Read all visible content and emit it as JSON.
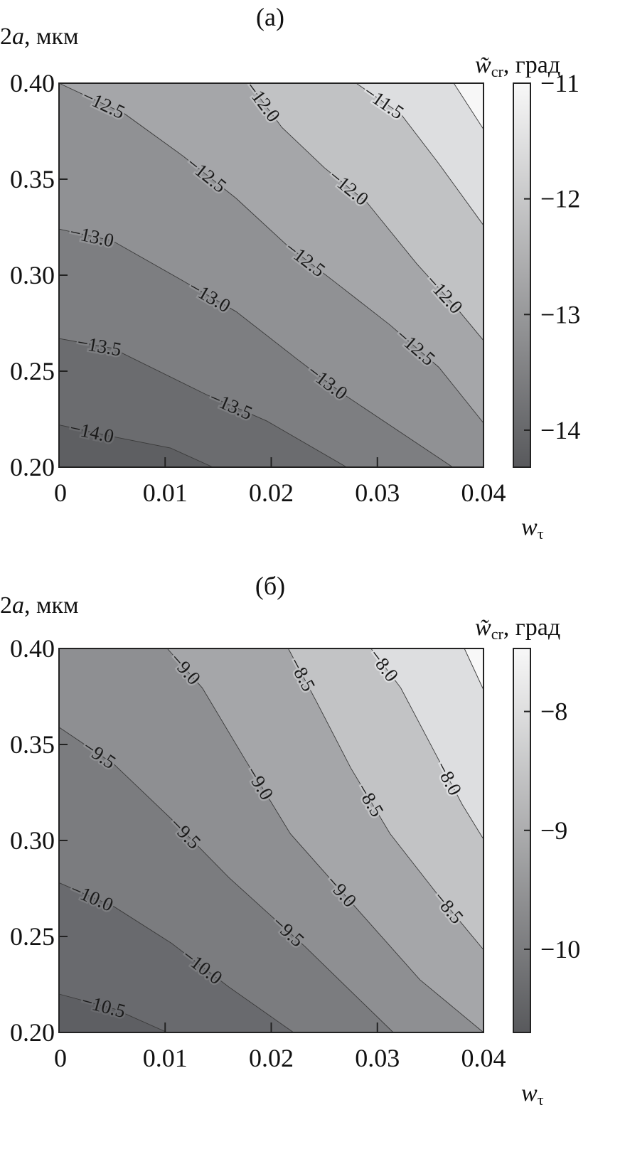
{
  "chart_data": [
    {
      "type": "heatmap",
      "subtype": "filled-contour",
      "title": "(a)",
      "xlabel": "w",
      "xlabel_sub": "τ",
      "ylabel": "2a, мкм",
      "ylabel_main": "2",
      "ylabel_italic": "a",
      "ylabel_unit": ", мкм",
      "colorbar_label_main": "w̃",
      "colorbar_label_sub": "cr",
      "colorbar_label_unit": ", град",
      "xlim": [
        0,
        0.04
      ],
      "ylim": [
        0.2,
        0.4
      ],
      "x_ticks": [
        "0",
        "0.01",
        "0.02",
        "0.03",
        "0.04"
      ],
      "x_tick_values": [
        0,
        0.01,
        0.02,
        0.03,
        0.04
      ],
      "y_ticks": [
        "0.40",
        "0.35",
        "0.30",
        "0.25",
        "0.20"
      ],
      "y_tick_values": [
        0.4,
        0.35,
        0.3,
        0.25,
        0.2
      ],
      "colorbar": {
        "range": [
          -14.32,
          -11
        ],
        "ticks": [
          "−11",
          "−12",
          "−13",
          "−14"
        ],
        "tick_values": [
          -11,
          -12,
          -13,
          -14
        ],
        "color_low": "#58595c",
        "color_high": "#f8f8f8"
      },
      "band_colors": [
        "#5e5f62",
        "#6b6c6f",
        "#7d7e81",
        "#909194",
        "#a5a6a9",
        "#c1c2c4",
        "#dddee0",
        "#f7f7f7"
      ],
      "contours": [
        {
          "level": -14.0,
          "label": "−14.0",
          "points": [
            [
              0,
              0.222
            ],
            [
              0.005,
              0.216
            ],
            [
              0.0105,
              0.21
            ],
            [
              0.0145,
              0.2
            ]
          ],
          "labels_at": [
            0.0031
          ]
        },
        {
          "level": -13.5,
          "label": "−13.5",
          "points": [
            [
              0,
              0.267
            ],
            [
              0.005,
              0.262
            ],
            [
              0.0138,
              0.238
            ],
            [
              0.0196,
              0.224
            ],
            [
              0.0271,
              0.2
            ]
          ],
          "labels_at": [
            0.0038,
            0.0162
          ]
        },
        {
          "level": -13.0,
          "label": "−13.0",
          "points": [
            [
              0,
              0.324
            ],
            [
              0.005,
              0.318
            ],
            [
              0.0117,
              0.297
            ],
            [
              0.0167,
              0.281
            ],
            [
              0.0225,
              0.256
            ],
            [
              0.0268,
              0.238
            ],
            [
              0.0371,
              0.2
            ]
          ],
          "labels_at": [
            0.0031,
            0.0142,
            0.0253
          ]
        },
        {
          "level": -12.5,
          "label": "−12.5",
          "points": [
            [
              0,
              0.4
            ],
            [
              0.0062,
              0.384
            ],
            [
              0.0117,
              0.362
            ],
            [
              0.0167,
              0.34
            ],
            [
              0.0214,
              0.316
            ],
            [
              0.0261,
              0.296
            ],
            [
              0.0312,
              0.274
            ],
            [
              0.0358,
              0.252
            ],
            [
              0.04,
              0.223
            ]
          ],
          "labels_at": [
            0.0042,
            0.0139,
            0.0232,
            0.0336
          ]
        },
        {
          "level": -12.0,
          "label": "−12.0",
          "points": [
            [
              0.0179,
              0.4
            ],
            [
              0.021,
              0.377
            ],
            [
              0.025,
              0.356
            ],
            [
              0.029,
              0.338
            ],
            [
              0.0337,
              0.306
            ],
            [
              0.0373,
              0.284
            ],
            [
              0.04,
              0.266
            ]
          ],
          "labels_at": [
            0.0192,
            0.0273,
            0.0363
          ]
        },
        {
          "level": -11.5,
          "label": "−11.5",
          "points": [
            [
              0.028,
              0.4
            ],
            [
              0.0322,
              0.384
            ],
            [
              0.0358,
              0.358
            ],
            [
              0.04,
              0.326
            ]
          ],
          "labels_at": [
            0.0306
          ]
        },
        {
          "level": -11.0,
          "label": "",
          "points": [
            [
              0.0372,
              0.4
            ],
            [
              0.04,
              0.376
            ]
          ],
          "labels_at": []
        }
      ]
    },
    {
      "type": "heatmap",
      "subtype": "filled-contour",
      "title": "(б)",
      "xlabel": "w",
      "xlabel_sub": "τ",
      "ylabel": "2a, мкм",
      "ylabel_main": "2",
      "ylabel_italic": "a",
      "ylabel_unit": ", мкм",
      "colorbar_label_main": "w̃",
      "colorbar_label_sub": "cr",
      "colorbar_label_unit": ", град",
      "xlim": [
        0,
        0.04
      ],
      "ylim": [
        0.2,
        0.4
      ],
      "x_ticks": [
        "0",
        "0.01",
        "0.02",
        "0.03",
        "0.04"
      ],
      "x_tick_values": [
        0,
        0.01,
        0.02,
        0.03,
        0.04
      ],
      "y_ticks": [
        "0.40",
        "0.35",
        "0.30",
        "0.25",
        "0.20"
      ],
      "y_tick_values": [
        0.4,
        0.35,
        0.3,
        0.25,
        0.2
      ],
      "colorbar": {
        "range": [
          -10.7,
          -7.47
        ],
        "ticks": [
          "−8",
          "−9",
          "−10"
        ],
        "tick_values": [
          -8,
          -9,
          -10
        ],
        "color_low": "#58595c",
        "color_high": "#f8f8f8"
      },
      "band_colors": [
        "#5e5f63",
        "#696a6e",
        "#7b7c7f",
        "#8e8f92",
        "#a5a6a9",
        "#c2c3c5",
        "#dddee0",
        "#f8f8f8"
      ],
      "contours": [
        {
          "level": -10.5,
          "label": "−10.5",
          "points": [
            [
              0,
              0.22
            ],
            [
              0.0052,
              0.2123
            ],
            [
              0.0102,
              0.2
            ]
          ],
          "labels_at": [
            0.0042
          ]
        },
        {
          "level": -10.0,
          "label": "−10.0",
          "points": [
            [
              0,
              0.278
            ],
            [
              0.0052,
              0.2655
            ],
            [
              0.0106,
              0.2465
            ],
            [
              0.016,
              0.2237
            ],
            [
              0.0221,
              0.2
            ]
          ],
          "labels_at": [
            0.0031,
            0.0135
          ]
        },
        {
          "level": -9.5,
          "label": "−9.5",
          "points": [
            [
              0,
              0.359
            ],
            [
              0.0052,
              0.3396
            ],
            [
              0.0106,
              0.3111
            ],
            [
              0.016,
              0.2807
            ],
            [
              0.0232,
              0.2446
            ],
            [
              0.0315,
              0.2
            ]
          ],
          "labels_at": [
            0.0038,
            0.0119,
            0.0216
          ]
        },
        {
          "level": -9.0,
          "label": "−9.0",
          "points": [
            [
              0.0102,
              0.4
            ],
            [
              0.0135,
              0.3795
            ],
            [
              0.0174,
              0.3434
            ],
            [
              0.0218,
              0.3035
            ],
            [
              0.0279,
              0.2655
            ],
            [
              0.034,
              0.2275
            ],
            [
              0.04,
              0.2
            ]
          ],
          "labels_at": [
            0.0119,
            0.0189,
            0.0266
          ]
        },
        {
          "level": -8.5,
          "label": "−8.5",
          "points": [
            [
              0.0216,
              0.4
            ],
            [
              0.0243,
              0.3719
            ],
            [
              0.0275,
              0.3377
            ],
            [
              0.0312,
              0.3035
            ],
            [
              0.0355,
              0.2731
            ],
            [
              0.04,
              0.2431
            ]
          ],
          "labels_at": [
            0.0229,
            0.0293,
            0.0367
          ]
        },
        {
          "level": -8.0,
          "label": "−8.0",
          "points": [
            [
              0.0294,
              0.4
            ],
            [
              0.0322,
              0.3795
            ],
            [
              0.0351,
              0.3491
            ],
            [
              0.038,
              0.3187
            ],
            [
              0.04,
              0.3007
            ]
          ],
          "labels_at": [
            0.0306,
            0.0367
          ]
        },
        {
          "level": -7.5,
          "label": "",
          "points": [
            [
              0.0382,
              0.4
            ],
            [
              0.04,
              0.3785
            ]
          ],
          "labels_at": []
        }
      ]
    }
  ]
}
